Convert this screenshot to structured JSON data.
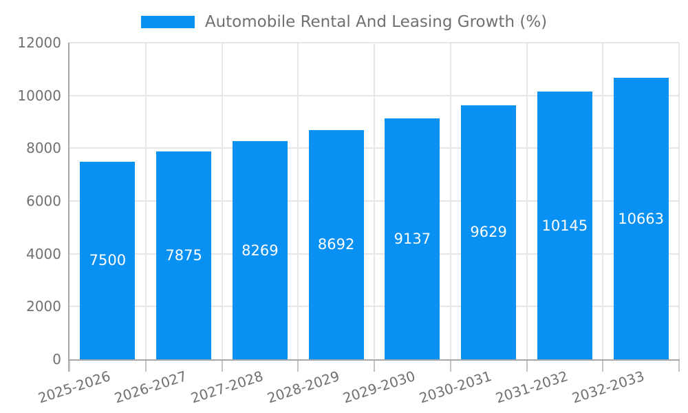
{
  "chart_data": {
    "type": "bar",
    "title": "Automobile Rental And Leasing Growth (%)",
    "legend_entries": [
      "Automobile Rental And Leasing Growth (%)"
    ],
    "legend_position": "top",
    "categories": [
      "2025-2026",
      "2026-2027",
      "2027-2028",
      "2028-2029",
      "2029-2030",
      "2030-2031",
      "2031-2032",
      "2032-2033"
    ],
    "values": [
      7500,
      7875,
      8269,
      8692,
      9137,
      9629,
      10145,
      10663
    ],
    "value_labels": [
      "7500",
      "7875",
      "8269",
      "8692",
      "9137",
      "9629",
      "10145",
      "10663"
    ],
    "xlabel": "",
    "ylabel": "",
    "ylim": [
      0,
      12000
    ],
    "yticks": [
      0,
      2000,
      4000,
      6000,
      8000,
      10000,
      12000
    ],
    "ytick_labels": [
      "0",
      "2000",
      "4000",
      "6000",
      "8000",
      "10000",
      "12000"
    ],
    "grid": true,
    "xtick_rotation_deg": -18,
    "colors": {
      "bar": "#0890f3",
      "value_text": "#ffffff",
      "grid": "#e6e6e6",
      "axis": "#a6a6a6",
      "tick_mark": "#c2c2c2",
      "tick_text": "#707070",
      "legend_text": "#707070",
      "background": "#ffffff"
    }
  }
}
